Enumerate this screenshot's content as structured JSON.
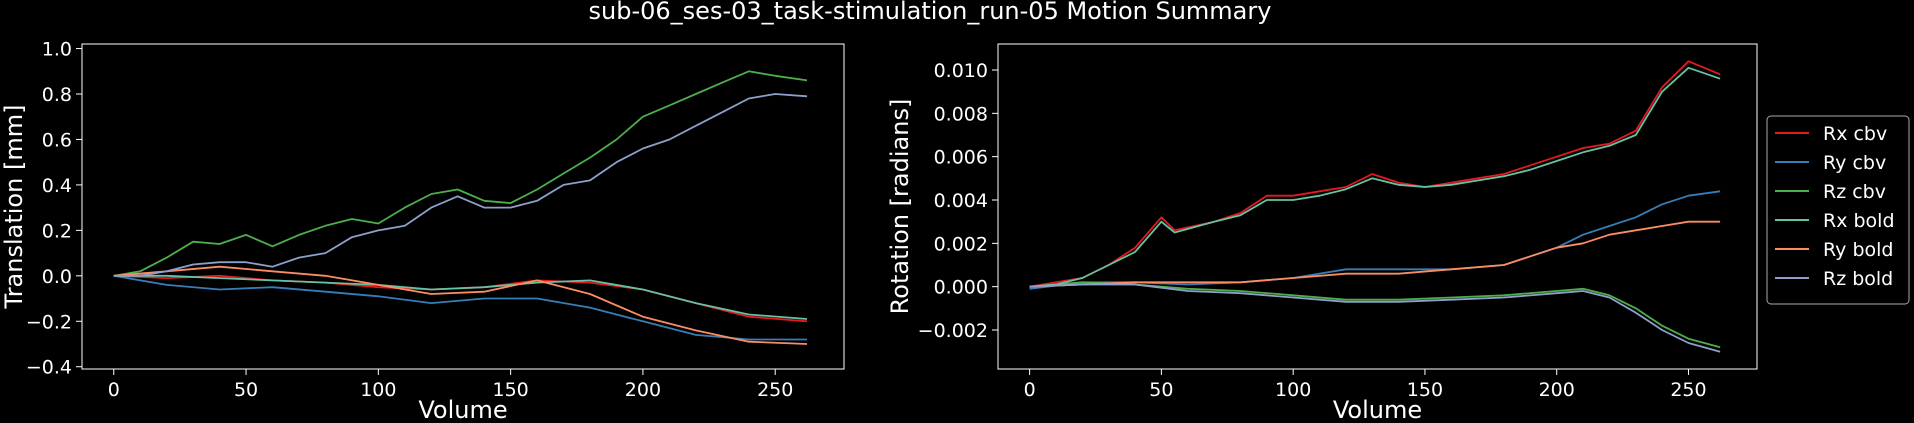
{
  "figure_title": "sub-06_ses-03_task-stimulation_run-05 Motion Summary",
  "chart_data": [
    {
      "type": "line",
      "xlabel": "Volume",
      "ylabel": "Translation [mm]",
      "xlim": [
        -12,
        276
      ],
      "ylim": [
        -0.41,
        1.02
      ],
      "xticks": [
        0,
        50,
        100,
        150,
        200,
        250
      ],
      "yticks": [
        -0.4,
        -0.2,
        0.0,
        0.2,
        0.4,
        0.6,
        0.8,
        1.0
      ],
      "ytick_labels": [
        "−0.4",
        "−0.2",
        "0.0",
        "0.2",
        "0.4",
        "0.6",
        "0.8",
        "1.0"
      ],
      "grid": false,
      "series": [
        {
          "color": "#e41a1c",
          "points": [
            [
              0,
              0.0
            ],
            [
              20,
              -0.01
            ],
            [
              40,
              0.0
            ],
            [
              60,
              -0.02
            ],
            [
              80,
              -0.03
            ],
            [
              100,
              -0.05
            ],
            [
              120,
              -0.06
            ],
            [
              140,
              -0.05
            ],
            [
              160,
              -0.02
            ],
            [
              180,
              -0.03
            ],
            [
              200,
              -0.06
            ],
            [
              220,
              -0.12
            ],
            [
              240,
              -0.18
            ],
            [
              262,
              -0.2
            ]
          ]
        },
        {
          "color": "#377eb8",
          "points": [
            [
              0,
              0.0
            ],
            [
              20,
              -0.04
            ],
            [
              40,
              -0.06
            ],
            [
              60,
              -0.05
            ],
            [
              80,
              -0.07
            ],
            [
              100,
              -0.09
            ],
            [
              120,
              -0.12
            ],
            [
              140,
              -0.1
            ],
            [
              160,
              -0.1
            ],
            [
              180,
              -0.14
            ],
            [
              200,
              -0.2
            ],
            [
              220,
              -0.26
            ],
            [
              240,
              -0.28
            ],
            [
              262,
              -0.28
            ]
          ]
        },
        {
          "color": "#4daf4a",
          "points": [
            [
              0,
              0.0
            ],
            [
              10,
              0.02
            ],
            [
              20,
              0.08
            ],
            [
              30,
              0.15
            ],
            [
              40,
              0.14
            ],
            [
              50,
              0.18
            ],
            [
              60,
              0.13
            ],
            [
              70,
              0.18
            ],
            [
              80,
              0.22
            ],
            [
              90,
              0.25
            ],
            [
              100,
              0.23
            ],
            [
              110,
              0.3
            ],
            [
              120,
              0.36
            ],
            [
              130,
              0.38
            ],
            [
              140,
              0.33
            ],
            [
              150,
              0.32
            ],
            [
              160,
              0.38
            ],
            [
              170,
              0.45
            ],
            [
              180,
              0.52
            ],
            [
              190,
              0.6
            ],
            [
              200,
              0.7
            ],
            [
              210,
              0.75
            ],
            [
              220,
              0.8
            ],
            [
              230,
              0.85
            ],
            [
              240,
              0.9
            ],
            [
              250,
              0.88
            ],
            [
              262,
              0.86
            ]
          ]
        },
        {
          "color": "#66c2a5",
          "points": [
            [
              0,
              0.0
            ],
            [
              20,
              0.0
            ],
            [
              40,
              -0.01
            ],
            [
              60,
              -0.02
            ],
            [
              80,
              -0.03
            ],
            [
              100,
              -0.04
            ],
            [
              120,
              -0.06
            ],
            [
              140,
              -0.05
            ],
            [
              160,
              -0.03
            ],
            [
              180,
              -0.02
            ],
            [
              200,
              -0.06
            ],
            [
              220,
              -0.12
            ],
            [
              240,
              -0.17
            ],
            [
              262,
              -0.19
            ]
          ]
        },
        {
          "color": "#fc8d62",
          "points": [
            [
              0,
              0.0
            ],
            [
              20,
              0.02
            ],
            [
              40,
              0.04
            ],
            [
              60,
              0.02
            ],
            [
              80,
              0.0
            ],
            [
              100,
              -0.04
            ],
            [
              120,
              -0.08
            ],
            [
              140,
              -0.07
            ],
            [
              160,
              -0.02
            ],
            [
              180,
              -0.08
            ],
            [
              200,
              -0.18
            ],
            [
              220,
              -0.24
            ],
            [
              240,
              -0.29
            ],
            [
              262,
              -0.3
            ]
          ]
        },
        {
          "color": "#8da0cb",
          "points": [
            [
              0,
              0.0
            ],
            [
              10,
              0.0
            ],
            [
              20,
              0.02
            ],
            [
              30,
              0.05
            ],
            [
              40,
              0.06
            ],
            [
              50,
              0.06
            ],
            [
              60,
              0.04
            ],
            [
              70,
              0.08
            ],
            [
              80,
              0.1
            ],
            [
              90,
              0.17
            ],
            [
              100,
              0.2
            ],
            [
              110,
              0.22
            ],
            [
              120,
              0.3
            ],
            [
              130,
              0.35
            ],
            [
              140,
              0.3
            ],
            [
              150,
              0.3
            ],
            [
              160,
              0.33
            ],
            [
              170,
              0.4
            ],
            [
              180,
              0.42
            ],
            [
              190,
              0.5
            ],
            [
              200,
              0.56
            ],
            [
              210,
              0.6
            ],
            [
              220,
              0.66
            ],
            [
              230,
              0.72
            ],
            [
              240,
              0.78
            ],
            [
              250,
              0.8
            ],
            [
              262,
              0.79
            ]
          ]
        }
      ]
    },
    {
      "type": "line",
      "xlabel": "Volume",
      "ylabel": "Rotation [radians]",
      "xlim": [
        -12,
        276
      ],
      "ylim": [
        -0.0038,
        0.0112
      ],
      "xticks": [
        0,
        50,
        100,
        150,
        200,
        250
      ],
      "yticks": [
        -0.002,
        0.0,
        0.002,
        0.004,
        0.006,
        0.008,
        0.01
      ],
      "ytick_labels": [
        "−0.002",
        "0.000",
        "0.002",
        "0.004",
        "0.006",
        "0.008",
        "0.010"
      ],
      "grid": false,
      "legend_position": "right-outside",
      "series": [
        {
          "name": "Rx cbv",
          "color": "#e41a1c",
          "points": [
            [
              0,
              0.0
            ],
            [
              10,
              0.0002
            ],
            [
              20,
              0.0004
            ],
            [
              30,
              0.001
            ],
            [
              40,
              0.0018
            ],
            [
              50,
              0.0032
            ],
            [
              55,
              0.0026
            ],
            [
              70,
              0.003
            ],
            [
              80,
              0.0034
            ],
            [
              90,
              0.0042
            ],
            [
              100,
              0.0042
            ],
            [
              110,
              0.0044
            ],
            [
              120,
              0.0046
            ],
            [
              130,
              0.0052
            ],
            [
              140,
              0.0048
            ],
            [
              150,
              0.0046
            ],
            [
              160,
              0.0048
            ],
            [
              170,
              0.005
            ],
            [
              180,
              0.0052
            ],
            [
              190,
              0.0056
            ],
            [
              200,
              0.006
            ],
            [
              210,
              0.0064
            ],
            [
              220,
              0.0066
            ],
            [
              230,
              0.0072
            ],
            [
              240,
              0.0092
            ],
            [
              250,
              0.0104
            ],
            [
              262,
              0.0098
            ]
          ]
        },
        {
          "name": "Ry cbv",
          "color": "#377eb8",
          "points": [
            [
              0,
              -0.0001
            ],
            [
              20,
              0.0002
            ],
            [
              40,
              0.0002
            ],
            [
              60,
              0.0001
            ],
            [
              80,
              0.0002
            ],
            [
              100,
              0.0004
            ],
            [
              120,
              0.0008
            ],
            [
              140,
              0.0008
            ],
            [
              160,
              0.0008
            ],
            [
              180,
              0.001
            ],
            [
              190,
              0.0014
            ],
            [
              200,
              0.0018
            ],
            [
              210,
              0.0024
            ],
            [
              220,
              0.0028
            ],
            [
              230,
              0.0032
            ],
            [
              240,
              0.0038
            ],
            [
              250,
              0.0042
            ],
            [
              262,
              0.0044
            ]
          ]
        },
        {
          "name": "Rz cbv",
          "color": "#4daf4a",
          "points": [
            [
              0,
              0.0
            ],
            [
              20,
              0.0002
            ],
            [
              40,
              0.0001
            ],
            [
              60,
              -0.0001
            ],
            [
              80,
              -0.0002
            ],
            [
              100,
              -0.0004
            ],
            [
              120,
              -0.0006
            ],
            [
              140,
              -0.0006
            ],
            [
              160,
              -0.0005
            ],
            [
              180,
              -0.0004
            ],
            [
              200,
              -0.0002
            ],
            [
              210,
              -0.0001
            ],
            [
              220,
              -0.0004
            ],
            [
              230,
              -0.001
            ],
            [
              240,
              -0.0018
            ],
            [
              250,
              -0.0024
            ],
            [
              262,
              -0.0028
            ]
          ]
        },
        {
          "name": "Rx bold",
          "color": "#66c2a5",
          "points": [
            [
              0,
              0.0
            ],
            [
              10,
              0.0001
            ],
            [
              20,
              0.0004
            ],
            [
              30,
              0.001
            ],
            [
              40,
              0.0016
            ],
            [
              50,
              0.003
            ],
            [
              55,
              0.0025
            ],
            [
              70,
              0.003
            ],
            [
              80,
              0.0033
            ],
            [
              90,
              0.004
            ],
            [
              100,
              0.004
            ],
            [
              110,
              0.0042
            ],
            [
              120,
              0.0045
            ],
            [
              130,
              0.005
            ],
            [
              140,
              0.0047
            ],
            [
              150,
              0.0046
            ],
            [
              160,
              0.0047
            ],
            [
              170,
              0.0049
            ],
            [
              180,
              0.0051
            ],
            [
              190,
              0.0054
            ],
            [
              200,
              0.0058
            ],
            [
              210,
              0.0062
            ],
            [
              220,
              0.0065
            ],
            [
              230,
              0.007
            ],
            [
              240,
              0.009
            ],
            [
              250,
              0.0101
            ],
            [
              262,
              0.0096
            ]
          ]
        },
        {
          "name": "Ry bold",
          "color": "#fc8d62",
          "points": [
            [
              0,
              0.0
            ],
            [
              20,
              0.0001
            ],
            [
              40,
              0.0002
            ],
            [
              60,
              0.0002
            ],
            [
              80,
              0.0002
            ],
            [
              100,
              0.0004
            ],
            [
              120,
              0.0006
            ],
            [
              140,
              0.0006
            ],
            [
              160,
              0.0008
            ],
            [
              180,
              0.001
            ],
            [
              190,
              0.0014
            ],
            [
              200,
              0.0018
            ],
            [
              210,
              0.002
            ],
            [
              220,
              0.0024
            ],
            [
              230,
              0.0026
            ],
            [
              240,
              0.0028
            ],
            [
              250,
              0.003
            ],
            [
              262,
              0.003
            ]
          ]
        },
        {
          "name": "Rz bold",
          "color": "#8da0cb",
          "points": [
            [
              0,
              0.0
            ],
            [
              20,
              0.0001
            ],
            [
              40,
              0.0001
            ],
            [
              60,
              -0.0002
            ],
            [
              80,
              -0.0003
            ],
            [
              100,
              -0.0005
            ],
            [
              120,
              -0.0007
            ],
            [
              140,
              -0.0007
            ],
            [
              160,
              -0.0006
            ],
            [
              180,
              -0.0005
            ],
            [
              200,
              -0.0003
            ],
            [
              210,
              -0.0002
            ],
            [
              220,
              -0.0005
            ],
            [
              230,
              -0.0012
            ],
            [
              240,
              -0.002
            ],
            [
              250,
              -0.0026
            ],
            [
              262,
              -0.003
            ]
          ]
        }
      ]
    }
  ]
}
